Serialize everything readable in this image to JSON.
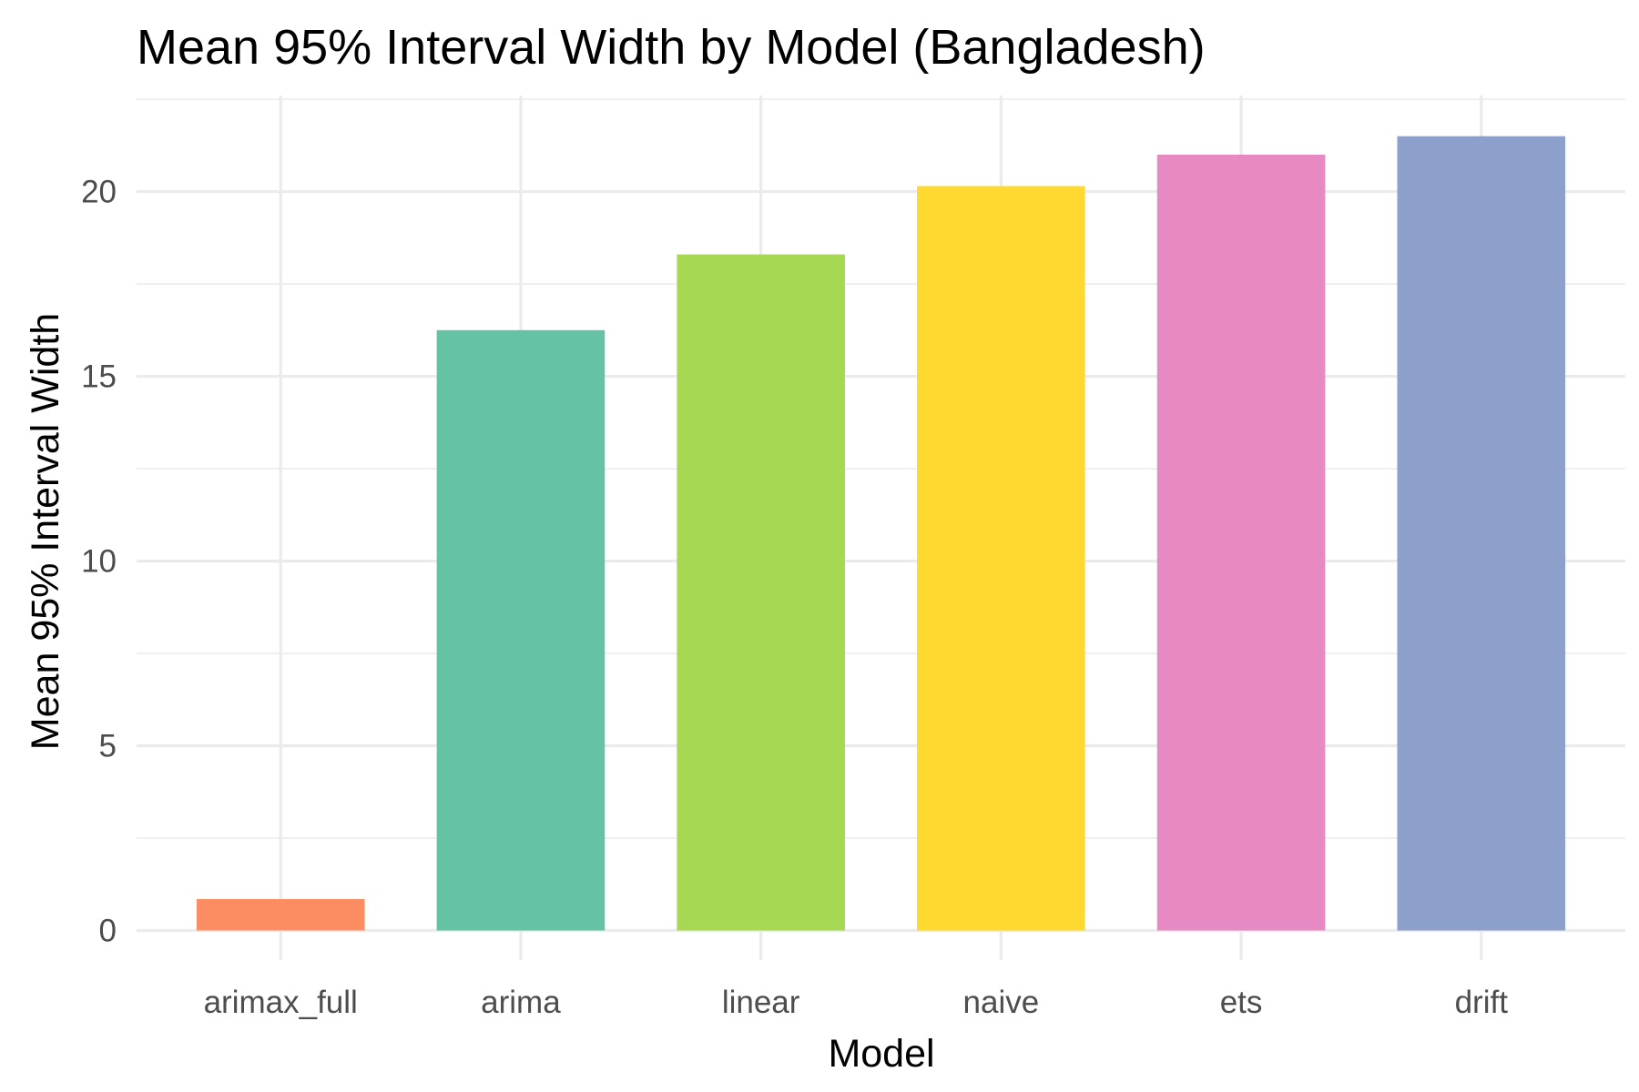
{
  "chart_data": {
    "type": "bar",
    "title": "Mean 95% Interval Width by Model (Bangladesh)",
    "xlabel": "Model",
    "ylabel": "Mean 95% Interval Width",
    "categories": [
      "arimax_full",
      "arima",
      "linear",
      "naive",
      "ets",
      "drift"
    ],
    "values": [
      0.85,
      16.25,
      18.3,
      20.15,
      21.0,
      21.5
    ],
    "colors": [
      "#FC8D62",
      "#66C2A5",
      "#A6D854",
      "#FFD92F",
      "#E78AC3",
      "#8DA0CB"
    ],
    "yticks": [
      "0",
      "5",
      "10",
      "15",
      "20"
    ],
    "ylim": [
      -0.8,
      22.6
    ],
    "grid": true,
    "legend": "none"
  }
}
